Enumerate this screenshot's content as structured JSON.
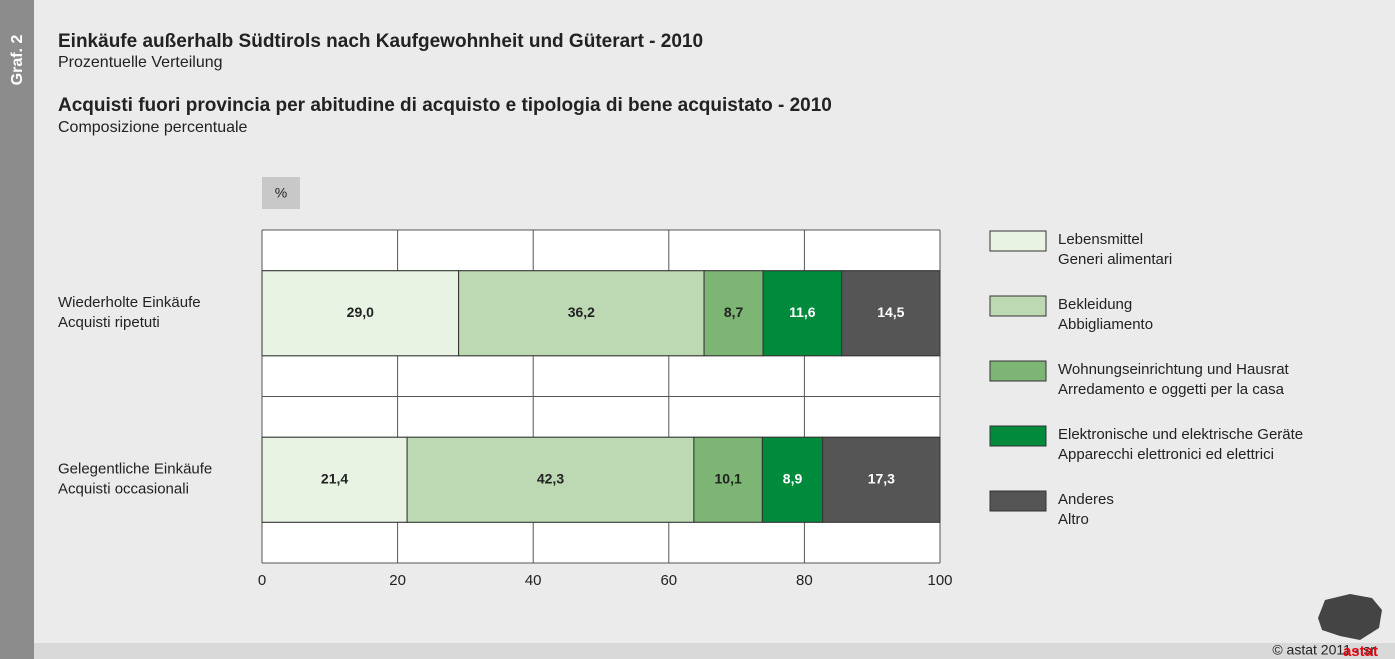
{
  "chart_data": {
    "type": "stacked-barh",
    "side_label": "Graf. 2",
    "title": "Einkäufe außerhalb Südtirols nach Kaufgewohnheit und Güterart - 2010",
    "subtitle": "Prozentuelle Verteilung",
    "title_it": "Acquisti fuori provincia per abitudine di acquisto e tipologia di bene acquistato - 2010",
    "subtitle_it": "Composizione percentuale",
    "unit": "%",
    "categories": [
      "Wiederholte Einkäufe",
      "Gelegentliche Einkäufe"
    ],
    "categories_it": [
      "Acquisti ripetuti",
      "Acquisti occasionali"
    ],
    "series": [
      {
        "name": "Lebensmittel",
        "name_it": "Generi alimentari",
        "color": "#e8f3e4",
        "label_color": "#222222",
        "values": [
          29.0,
          21.4
        ],
        "value_labels": [
          "29,0",
          "21,4"
        ]
      },
      {
        "name": "Bekleidung",
        "name_it": "Abbigliamento",
        "color": "#bcd9b3",
        "label_color": "#222222",
        "values": [
          36.2,
          42.3
        ],
        "value_labels": [
          "36,2",
          "42,3"
        ]
      },
      {
        "name": "Wohnungseinrichtung und Hausrat",
        "name_it": "Arredamento e oggetti per la casa",
        "color": "#7db574",
        "label_color": "#222222",
        "values": [
          8.7,
          10.1
        ],
        "value_labels": [
          "8,7",
          "10,1"
        ]
      },
      {
        "name": "Elektronische und elektrische Geräte",
        "name_it": "Apparecchi elettronici ed elettrici",
        "color": "#008a3c",
        "label_color": "#ffffff",
        "values": [
          11.6,
          8.9
        ],
        "value_labels": [
          "11,6",
          "8,9"
        ]
      },
      {
        "name": "Anderes",
        "name_it": "Altro",
        "color": "#555555",
        "label_color": "#ffffff",
        "values": [
          14.5,
          17.3
        ],
        "value_labels": [
          "14,5",
          "17,3"
        ]
      }
    ],
    "xlim": [
      0,
      100
    ],
    "xticks": [
      0,
      20,
      40,
      60,
      80,
      100
    ],
    "grid": true,
    "legend": "right",
    "footer": "© astat 2011 - sr",
    "logo": "astat"
  }
}
